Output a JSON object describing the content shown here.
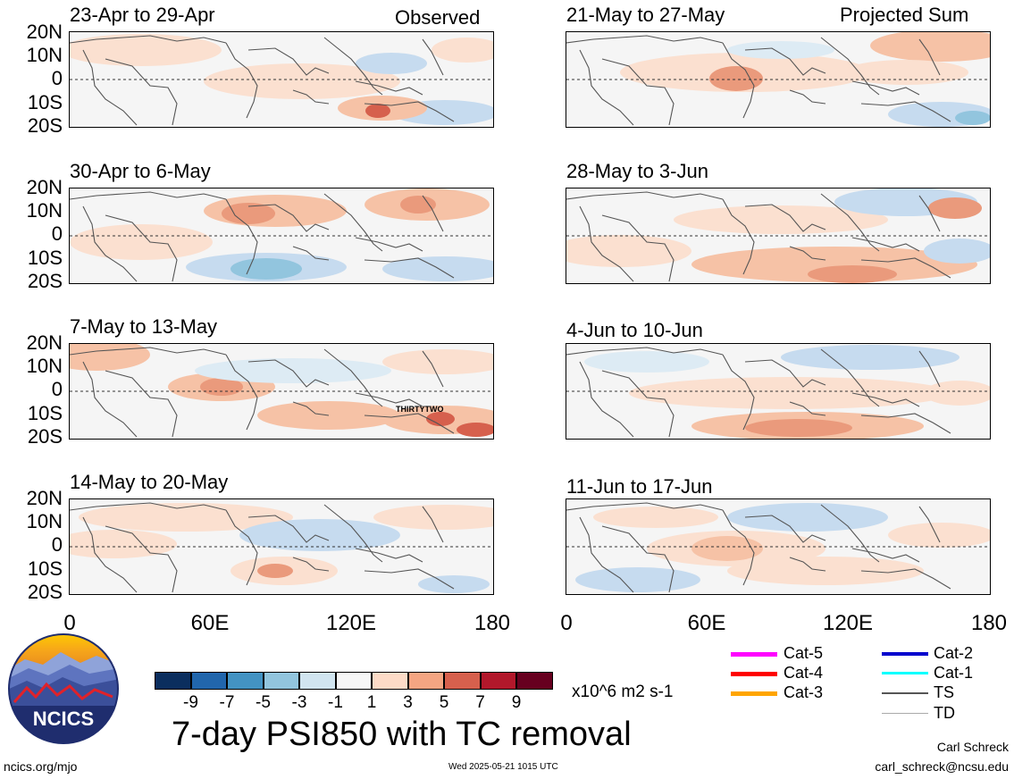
{
  "panels": [
    {
      "title": "23-Apr to 29-Apr",
      "tag": "Observed"
    },
    {
      "title": "30-Apr to 6-May",
      "tag": ""
    },
    {
      "title": "7-May to 13-May",
      "tag": "",
      "storm_label": "THIRTYTWO"
    },
    {
      "title": "14-May to 20-May",
      "tag": ""
    },
    {
      "title": "21-May to 27-May",
      "tag": "Projected Sum"
    },
    {
      "title": "28-May to 3-Jun",
      "tag": ""
    },
    {
      "title": "4-Jun to 10-Jun",
      "tag": ""
    },
    {
      "title": "11-Jun to 17-Jun",
      "tag": ""
    }
  ],
  "lat_labels": [
    "20N",
    "10N",
    "0",
    "10S",
    "20S"
  ],
  "lon_labels": [
    "0",
    "60E",
    "120E",
    "180"
  ],
  "colorbar": {
    "colors": [
      "#0b2e5e",
      "#2166ac",
      "#4393c3",
      "#92c5de",
      "#d1e5f0",
      "#f7f7f7",
      "#fddbc7",
      "#f4a582",
      "#d6604d",
      "#b2182b",
      "#67001f"
    ],
    "ticks": [
      "-9",
      "-7",
      "-5",
      "-3",
      "-1",
      "1",
      "3",
      "5",
      "7",
      "9"
    ],
    "units": "x10^6 m2 s-1"
  },
  "legend": [
    {
      "label": "Cat-5",
      "color": "#ff00ff"
    },
    {
      "label": "Cat-4",
      "color": "#ff0000"
    },
    {
      "label": "Cat-3",
      "color": "#ffa500"
    },
    {
      "label": "Cat-2",
      "color": "#0000cd"
    },
    {
      "label": "Cat-1",
      "color": "#00ffff"
    },
    {
      "label": "TS",
      "color": "#555555"
    },
    {
      "label": "TD",
      "color": "#aaaaaa"
    }
  ],
  "logo": {
    "text": "NCICS"
  },
  "main_title": "7-day PSI850 with TC removal",
  "footer": {
    "url": "ncics.org/mjo",
    "timestamp": "Wed 2025-05-21 1015 UTC",
    "author": "Carl Schreck",
    "email": "carl_schreck@ncsu.edu"
  }
}
